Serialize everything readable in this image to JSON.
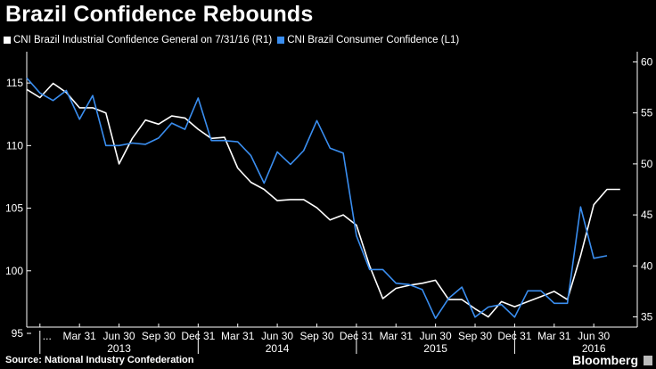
{
  "chart_data": {
    "type": "line",
    "title": "Brazil Confidence Rebounds",
    "legend": [
      {
        "label": "CNI Brazil Industrial Confidence General  on 7/31/16 (R1)",
        "color": "#ffffff"
      },
      {
        "label": "CNI Brazil Consumer Confidence  (L1)",
        "color": "#3a8ef0"
      }
    ],
    "left_axis": {
      "ticks": [
        "115",
        "110",
        "105",
        "100",
        "95"
      ],
      "range": [
        95.5,
        117.5
      ]
    },
    "right_axis": {
      "ticks": [
        "60",
        "55",
        "50",
        "45",
        "40",
        "35"
      ],
      "range": [
        34,
        61
      ]
    },
    "x_ticks": [
      "...",
      "Mar 31",
      "Jun 30",
      "Sep 30",
      "Dec 31",
      "Mar 31",
      "Jun 30",
      "Sep 30",
      "Dec 31",
      "Mar 31",
      "Jun 30",
      "Sep 30",
      "Dec 31",
      "Mar 31",
      "Jun 30"
    ],
    "x_years": [
      "2013",
      "2014",
      "2015",
      "2016"
    ],
    "series": [
      {
        "name": "CNI Brazil Industrial Confidence General  on 7/31/16 (R1)",
        "color": "#ffffff",
        "axis": "right",
        "x": [
          "2012-12",
          "2013-01",
          "2013-02",
          "2013-03",
          "2013-04",
          "2013-05",
          "2013-06",
          "2013-07",
          "2013-08",
          "2013-09",
          "2013-10",
          "2013-11",
          "2013-12",
          "2014-01",
          "2014-02",
          "2014-03",
          "2014-04",
          "2014-05",
          "2014-06",
          "2014-07",
          "2014-08",
          "2014-09",
          "2014-10",
          "2014-11",
          "2014-12",
          "2015-01",
          "2015-02",
          "2015-03",
          "2015-04",
          "2015-05",
          "2015-06",
          "2015-07",
          "2015-08",
          "2015-09",
          "2015-10",
          "2015-11",
          "2015-12",
          "2016-01",
          "2016-02",
          "2016-03",
          "2016-04",
          "2016-05",
          "2016-06",
          "2016-07",
          "2016-08",
          "2016-09"
        ],
        "values": [
          57.3,
          56.5,
          57.9,
          57.0,
          55.5,
          55.5,
          55.0,
          50.0,
          52.5,
          54.3,
          53.9,
          54.7,
          54.5,
          53.4,
          52.5,
          52.6,
          49.6,
          48.2,
          47.5,
          46.4,
          46.5,
          46.5,
          45.7,
          44.5,
          45.0,
          44.0,
          40.0,
          36.8,
          37.8,
          38.1,
          38.3,
          38.6,
          36.7,
          36.7,
          35.8,
          35.0,
          36.5,
          36.0,
          36.5,
          37.0,
          37.5,
          36.7,
          41.0,
          46.0,
          47.5,
          47.5
        ]
      },
      {
        "name": "CNI Brazil Consumer Confidence  (L1)",
        "color": "#3a8ef0",
        "axis": "left",
        "x": [
          "2012-12",
          "2013-01",
          "2013-02",
          "2013-03",
          "2013-04",
          "2013-05",
          "2013-06",
          "2013-07",
          "2013-08",
          "2013-09",
          "2013-10",
          "2013-11",
          "2013-12",
          "2014-01",
          "2014-02",
          "2014-03",
          "2014-04",
          "2014-05",
          "2014-06",
          "2014-07",
          "2014-08",
          "2014-09",
          "2014-10",
          "2014-11",
          "2014-12",
          "2015-01",
          "2015-02",
          "2015-03",
          "2015-04",
          "2015-05",
          "2015-06",
          "2015-07",
          "2015-08",
          "2015-09",
          "2015-10",
          "2015-11",
          "2015-12",
          "2016-01",
          "2016-02",
          "2016-03",
          "2016-04",
          "2016-05",
          "2016-06",
          "2016-07",
          "2016-08"
        ],
        "values": [
          115.4,
          114.2,
          113.6,
          114.4,
          112.1,
          114.0,
          110.0,
          110.0,
          110.2,
          110.1,
          110.6,
          111.8,
          111.3,
          113.8,
          110.4,
          110.4,
          110.3,
          109.2,
          107.0,
          109.5,
          108.5,
          109.6,
          112.0,
          109.8,
          109.4,
          102.8,
          100.1,
          100.1,
          99.0,
          98.9,
          98.5,
          96.2,
          97.8,
          98.7,
          96.3,
          97.1,
          97.3,
          96.3,
          98.4,
          98.4,
          97.4,
          97.4,
          105.1,
          101.0,
          101.2
        ]
      }
    ],
    "grid": false
  },
  "footer": {
    "source": "Source: National Industry Confederation"
  },
  "brand": {
    "name": "Bloomberg"
  }
}
